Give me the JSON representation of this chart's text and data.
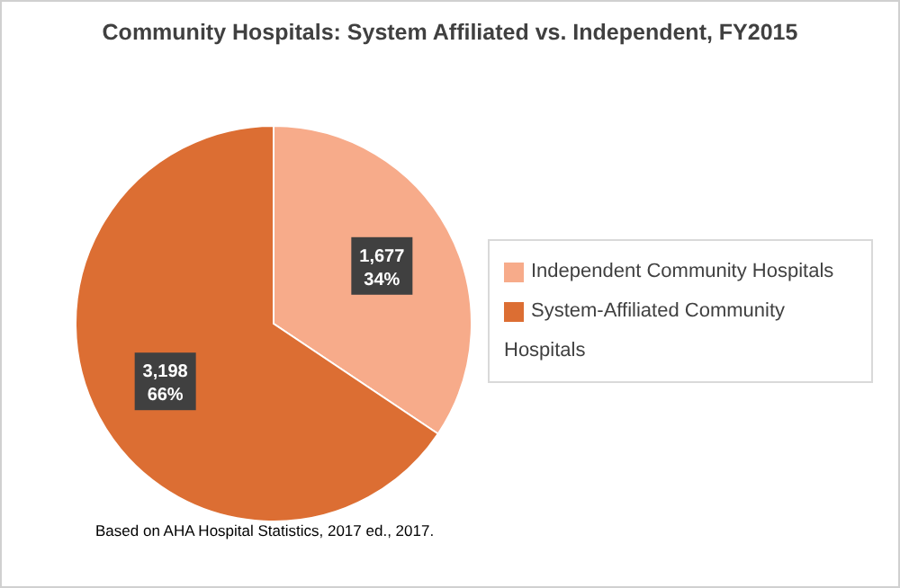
{
  "chart_data": {
    "type": "pie",
    "title": "Community Hospitals:  System Affiliated vs. Independent, FY2015",
    "categories": [
      "Independent Community Hospitals",
      "System-Affiliated Community Hospitals"
    ],
    "values": [
      1677,
      3198
    ],
    "colors": [
      "#f7ab8a",
      "#dc6e33"
    ],
    "value_labels": [
      "1,677\n34%",
      "3,198\n66%"
    ],
    "legend": "right",
    "annotations": [
      "Based on AHA Hospital Statistics, 2017 ed., 2017."
    ]
  }
}
